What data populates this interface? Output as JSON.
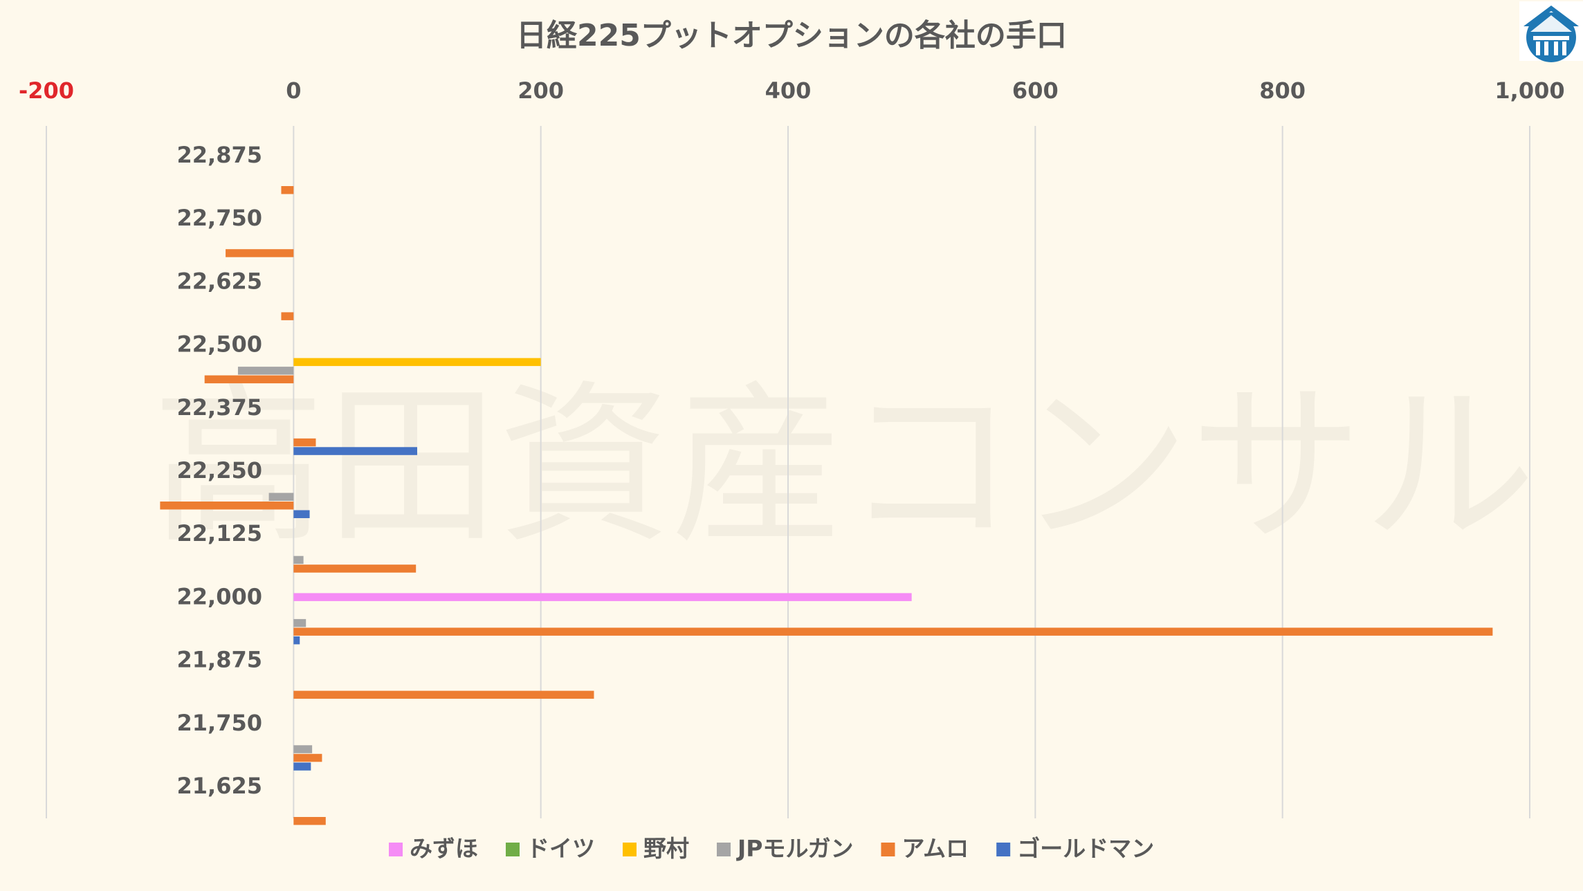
{
  "chart_data": {
    "type": "bar",
    "orientation": "horizontal",
    "title": "日経225プットオプションの各社の手口",
    "xlim": [
      -200,
      1000
    ],
    "xticks": [
      {
        "value": -200,
        "label": "-200"
      },
      {
        "value": 0,
        "label": "0"
      },
      {
        "value": 200,
        "label": "200"
      },
      {
        "value": 400,
        "label": "400"
      },
      {
        "value": 600,
        "label": "600"
      },
      {
        "value": 800,
        "label": "800"
      },
      {
        "value": 1000,
        "label": "1,000"
      }
    ],
    "categories": [
      "22,875",
      "22,750",
      "22,625",
      "22,500",
      "22,375",
      "22,250",
      "22,125",
      "22,000",
      "21,875",
      "21,750",
      "21,625"
    ],
    "series": [
      {
        "name": "みずほ",
        "color": "#f58cf5",
        "values": [
          0,
          0,
          0,
          0,
          0,
          0,
          0,
          500,
          0,
          0,
          0
        ]
      },
      {
        "name": "ドイツ",
        "color": "#70ad47",
        "values": [
          0,
          0,
          0,
          0,
          0,
          0,
          0,
          0,
          0,
          0,
          0
        ]
      },
      {
        "name": "野村",
        "color": "#ffc000",
        "values": [
          0,
          0,
          0,
          200,
          0,
          0,
          0,
          0,
          0,
          0,
          0
        ]
      },
      {
        "name": "JPモルガン",
        "color": "#a5a5a5",
        "values": [
          0,
          0,
          0,
          -45,
          0,
          -20,
          8,
          10,
          0,
          15,
          0
        ]
      },
      {
        "name": "アムロ",
        "color": "#ed7d31",
        "values": [
          -10,
          -55,
          -10,
          -72,
          18,
          -108,
          99,
          970,
          243,
          23,
          26
        ]
      },
      {
        "name": "ゴールドマン",
        "color": "#4472c4",
        "values": [
          0,
          0,
          0,
          0,
          100,
          13,
          0,
          5,
          0,
          14,
          0
        ]
      }
    ],
    "grid": true,
    "legend_position": "bottom"
  },
  "watermark": "高田資産コンサル",
  "logo": {
    "name": "building-logo-icon",
    "color": "#1f78b4"
  }
}
